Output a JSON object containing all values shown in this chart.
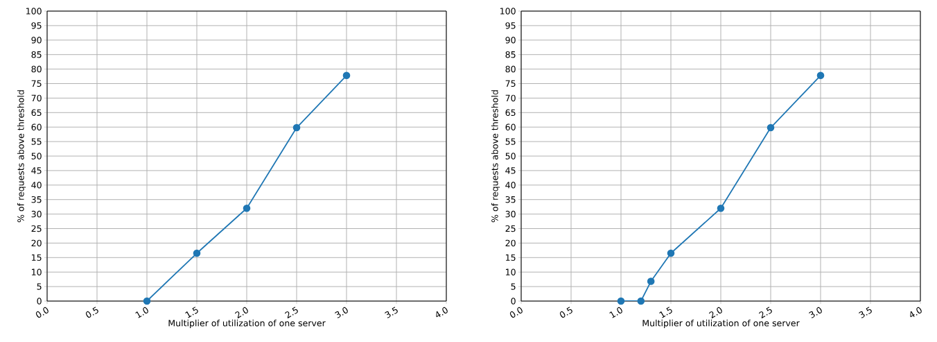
{
  "chart_data": [
    {
      "type": "line",
      "xlabel": "Multiplier of utilization of one server",
      "ylabel": "% of requests above threshold",
      "x": [
        1.0,
        1.5,
        2.0,
        2.5,
        3.0
      ],
      "series": [
        {
          "color": "#1f77b4",
          "values": [
            0,
            16.5,
            32,
            59.8,
            77.8
          ]
        }
      ],
      "xlim": [
        0,
        4
      ],
      "ylim": [
        0,
        100
      ],
      "xticks": [
        {
          "value": 0,
          "label": "0.0"
        },
        {
          "value": 0.5,
          "label": "0.5"
        },
        {
          "value": 1,
          "label": "1.0"
        },
        {
          "value": 1.5,
          "label": "1.5"
        },
        {
          "value": 2,
          "label": "2.0"
        },
        {
          "value": 2.5,
          "label": "2.5"
        },
        {
          "value": 3,
          "label": "3.0"
        },
        {
          "value": 3.5,
          "label": "3.5"
        },
        {
          "value": 4,
          "label": "4.0"
        }
      ],
      "yticks": [
        0,
        5,
        10,
        15,
        20,
        25,
        30,
        35,
        40,
        45,
        50,
        55,
        60,
        65,
        70,
        75,
        80,
        85,
        90,
        95,
        100
      ],
      "grid": true,
      "marker": "circle"
    },
    {
      "type": "line",
      "xlabel": "Multiplier of utilization of one server",
      "ylabel": "% of requests above threshold",
      "x": [
        1.0,
        1.2,
        1.3,
        1.5,
        2.0,
        2.5,
        3.0
      ],
      "series": [
        {
          "color": "#1f77b4",
          "values": [
            0,
            0,
            6.8,
            16.5,
            32,
            59.8,
            77.8
          ]
        }
      ],
      "xlim": [
        0,
        4
      ],
      "ylim": [
        0,
        100
      ],
      "xticks": [
        {
          "value": 0,
          "label": "0.0"
        },
        {
          "value": 0.5,
          "label": "0.5"
        },
        {
          "value": 1,
          "label": "1.0"
        },
        {
          "value": 1.5,
          "label": "1.5"
        },
        {
          "value": 2,
          "label": "2.0"
        },
        {
          "value": 2.5,
          "label": "2.5"
        },
        {
          "value": 3,
          "label": "3.0"
        },
        {
          "value": 3.5,
          "label": "3.5"
        },
        {
          "value": 4,
          "label": "4.0"
        }
      ],
      "yticks": [
        0,
        5,
        10,
        15,
        20,
        25,
        30,
        35,
        40,
        45,
        50,
        55,
        60,
        65,
        70,
        75,
        80,
        85,
        90,
        95,
        100
      ],
      "grid": true,
      "marker": "circle"
    }
  ]
}
